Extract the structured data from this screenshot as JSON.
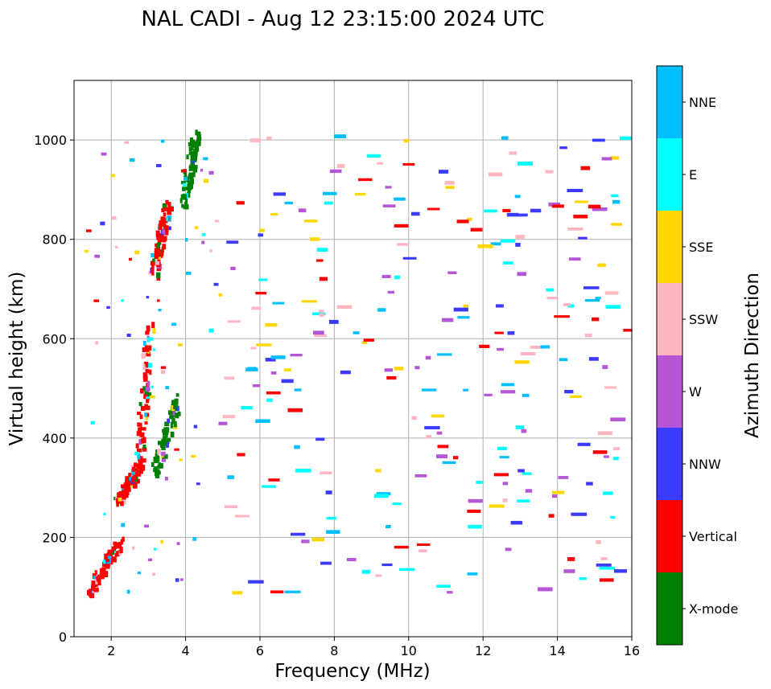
{
  "chart_data": {
    "type": "scatter",
    "title": "NAL CADI - Aug 12 23:15:00 2024 UTC",
    "xlabel": "Frequency (MHz)",
    "ylabel": "Virtual height (km)",
    "xlim": [
      1,
      16
    ],
    "ylim": [
      0,
      1120
    ],
    "xticks": [
      2,
      4,
      6,
      8,
      10,
      12,
      14,
      16
    ],
    "yticks": [
      0,
      200,
      400,
      600,
      800,
      1000
    ],
    "grid": true,
    "colorbar": {
      "label": "Azimuth Direction",
      "categories": [
        {
          "name": "X-mode",
          "color": "#008000"
        },
        {
          "name": "Vertical",
          "color": "#ff0000"
        },
        {
          "name": "NNW",
          "color": "#3b3bff"
        },
        {
          "name": "W",
          "color": "#b556d6"
        },
        {
          "name": "SSW",
          "color": "#ffb6c1"
        },
        {
          "name": "SSE",
          "color": "#ffd700"
        },
        {
          "name": "E",
          "color": "#00ffff"
        },
        {
          "name": "NNE",
          "color": "#00bfff"
        }
      ]
    },
    "trace_segments": [
      {
        "name": "low-E trace",
        "x0": 1.45,
        "y0": 90,
        "x1": 2.25,
        "y1": 190
      },
      {
        "name": "F1 cusp",
        "x0": 2.2,
        "y0": 270,
        "x1": 2.75,
        "y1": 340
      },
      {
        "name": "F1 rise",
        "x0": 2.75,
        "y0": 340,
        "x1": 3.05,
        "y1": 630
      },
      {
        "name": "F2 upper",
        "x0": 3.15,
        "y0": 730,
        "x1": 3.55,
        "y1": 870
      },
      {
        "name": "X-mode lower",
        "x0": 3.2,
        "y0": 330,
        "x1": 3.8,
        "y1": 480
      },
      {
        "name": "X-mode upper",
        "x0": 3.95,
        "y0": 870,
        "x1": 4.3,
        "y1": 1015
      }
    ],
    "noise_summary": "scattered echoes across 1-16 MHz, mostly heights 90-1010 km",
    "random_seed": 20240812,
    "noise_count": 330
  }
}
